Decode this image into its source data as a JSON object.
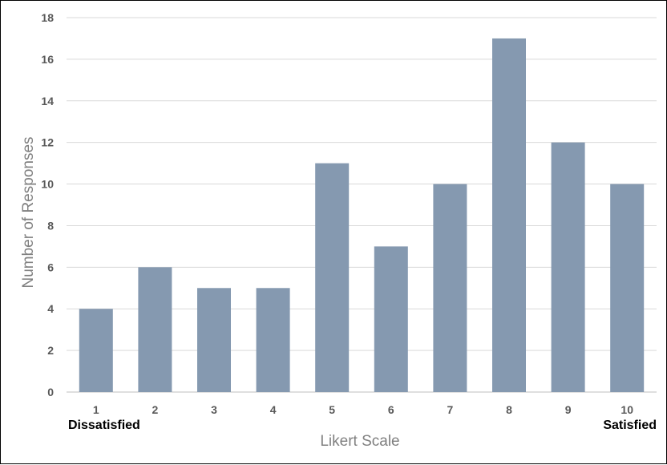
{
  "chart_data": {
    "type": "bar",
    "categories": [
      "1",
      "2",
      "3",
      "4",
      "5",
      "6",
      "7",
      "8",
      "9",
      "10"
    ],
    "values": [
      4,
      6,
      5,
      5,
      11,
      7,
      10,
      17,
      12,
      10
    ],
    "xlabel": "Likert Scale",
    "ylabel": "Number of Responses",
    "ylim": [
      0,
      18
    ],
    "yticks": [
      0,
      2,
      4,
      6,
      8,
      10,
      12,
      14,
      16,
      18
    ],
    "grid": true,
    "bar_color": "#8599b0",
    "end_labels": {
      "left": "Dissatisfied",
      "right": "Satisfied"
    }
  }
}
